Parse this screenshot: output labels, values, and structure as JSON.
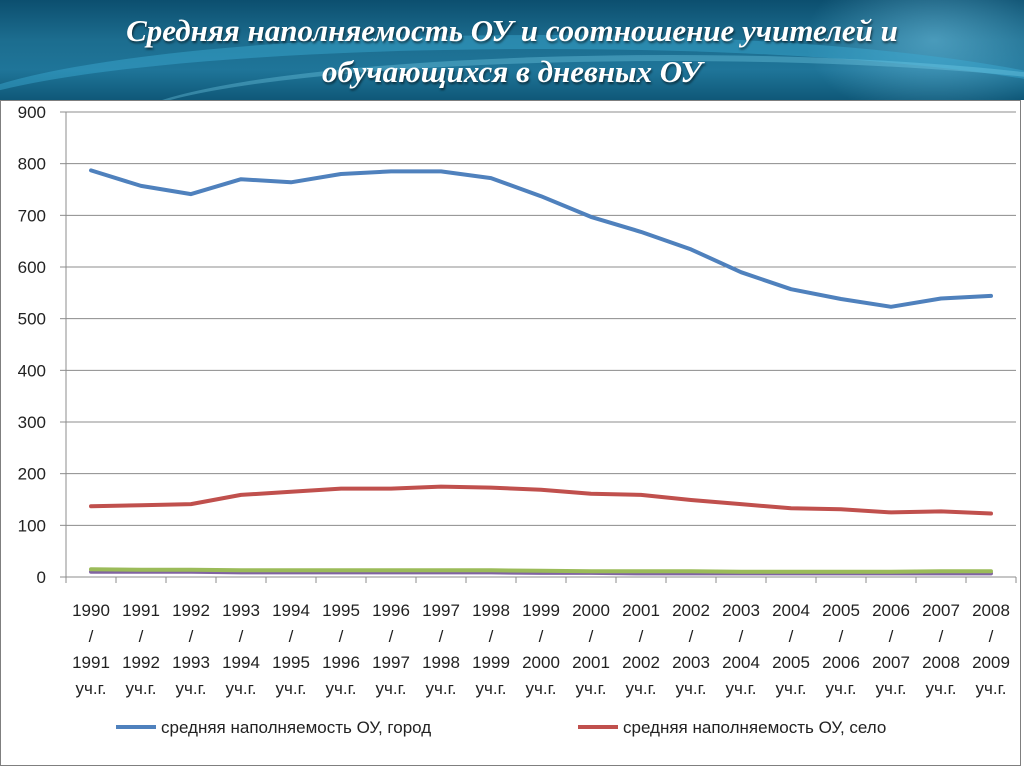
{
  "slide": {
    "title_line1": "Средняя наполняемость ОУ и соотношение учителей и",
    "title_line2": "обучающихся в дневных ОУ"
  },
  "colors": {
    "header_bg": "#1c6d8f",
    "city": "#4f81bd",
    "village": "#c0504d",
    "green": "#9bbb59",
    "purple": "#8064a2"
  },
  "chart_data": {
    "type": "line",
    "title": "",
    "xlabel": "",
    "ylabel": "",
    "ylim": [
      0,
      900
    ],
    "yticks": [
      "0",
      "100",
      "200",
      "300",
      "400",
      "500",
      "600",
      "700",
      "800",
      "900"
    ],
    "grid": true,
    "legend_position": "bottom",
    "categories": [
      [
        "1990",
        "/",
        "1991",
        "уч.г."
      ],
      [
        "1991",
        "/",
        "1992",
        "уч.г."
      ],
      [
        "1992",
        "/",
        "1993",
        "уч.г."
      ],
      [
        "1993",
        "/",
        "1994",
        "уч.г."
      ],
      [
        "1994",
        "/",
        "1995",
        "уч.г."
      ],
      [
        "1995",
        "/",
        "1996",
        "уч.г."
      ],
      [
        "1996",
        "/",
        "1997",
        "уч.г."
      ],
      [
        "1997",
        "/",
        "1998",
        "уч.г."
      ],
      [
        "1998",
        "/",
        "1999",
        "уч.г."
      ],
      [
        "1999",
        "/",
        "2000",
        "уч.г."
      ],
      [
        "2000",
        "/",
        "2001",
        "уч.г."
      ],
      [
        "2001",
        "/",
        "2002",
        "уч.г."
      ],
      [
        "2002",
        "/",
        "2003",
        "уч.г."
      ],
      [
        "2003",
        "/",
        "2004",
        "уч.г."
      ],
      [
        "2004",
        "/",
        "2005",
        "уч.г."
      ],
      [
        "2005",
        "/",
        "2006",
        "уч.г."
      ],
      [
        "2006",
        "/",
        "2007",
        "уч.г."
      ],
      [
        "2007",
        "/",
        "2008",
        "уч.г."
      ],
      [
        "2008",
        "/",
        "2009",
        "уч.г."
      ]
    ],
    "series": [
      {
        "name": "средняя наполняемость ОУ, город",
        "color": "#4f81bd",
        "values": [
          787,
          757,
          741,
          770,
          764,
          780,
          785,
          785,
          772,
          737,
          697,
          668,
          634,
          590,
          557,
          538,
          523,
          539,
          544
        ]
      },
      {
        "name": "средняя наполняемость ОУ, село",
        "color": "#c0504d",
        "values": [
          137,
          139,
          141,
          159,
          165,
          171,
          171,
          175,
          173,
          169,
          161,
          159,
          149,
          141,
          133,
          131,
          125,
          127,
          123
        ]
      },
      {
        "name": "",
        "color": "#9bbb59",
        "values": [
          15,
          14,
          14,
          13,
          13,
          13,
          13,
          13,
          13,
          12,
          11,
          11,
          11,
          10,
          10,
          10,
          10,
          11,
          11
        ]
      },
      {
        "name": "",
        "color": "#8064a2",
        "values": [
          10,
          10,
          10,
          9,
          9,
          9,
          9,
          9,
          9,
          8,
          8,
          7,
          7,
          7,
          7,
          7,
          7,
          7,
          7
        ]
      }
    ],
    "legend": [
      {
        "label": "средняя наполняемость ОУ, город",
        "color": "#4f81bd"
      },
      {
        "label": "средняя наполняемость ОУ, село",
        "color": "#c0504d"
      }
    ]
  }
}
